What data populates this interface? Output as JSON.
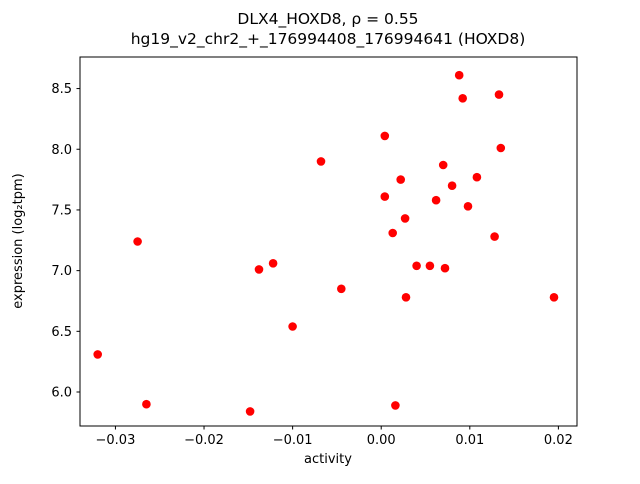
{
  "chart_data": {
    "type": "scatter",
    "title_line1": "DLX4_HOXD8, ρ = 0.55",
    "title_line2": "hg19_v2_chr2_+_176994408_176994641 (HOXD8)",
    "xlabel": "activity",
    "ylabel": "expression (log₂tpm)",
    "marker_color": "#ff0000",
    "axis_color": "#000000",
    "xlim": [
      -0.034,
      0.0221
    ],
    "ylim": [
      5.72,
      8.76
    ],
    "x_ticks": {
      "values": [
        -0.03,
        -0.02,
        -0.01,
        0.0,
        0.01,
        0.02
      ],
      "labels": [
        "−0.03",
        "−0.02",
        "−0.01",
        "0.00",
        "0.01",
        "0.02"
      ]
    },
    "y_ticks": {
      "values": [
        6.0,
        6.5,
        7.0,
        7.5,
        8.0,
        8.5
      ],
      "labels": [
        "6.0",
        "6.5",
        "7.0",
        "7.5",
        "8.0",
        "8.5"
      ]
    },
    "points": [
      [
        -0.032,
        6.31
      ],
      [
        -0.0275,
        7.24
      ],
      [
        -0.0265,
        5.9
      ],
      [
        -0.0148,
        5.84
      ],
      [
        -0.0138,
        7.01
      ],
      [
        -0.0122,
        7.06
      ],
      [
        -0.01,
        6.54
      ],
      [
        -0.0068,
        7.9
      ],
      [
        -0.0045,
        6.85
      ],
      [
        0.0004,
        8.11
      ],
      [
        0.0004,
        7.61
      ],
      [
        0.0013,
        7.31
      ],
      [
        0.0016,
        5.89
      ],
      [
        0.0022,
        7.75
      ],
      [
        0.0027,
        7.43
      ],
      [
        0.0028,
        6.78
      ],
      [
        0.004,
        7.04
      ],
      [
        0.0055,
        7.04
      ],
      [
        0.0062,
        7.58
      ],
      [
        0.007,
        7.87
      ],
      [
        0.0072,
        7.02
      ],
      [
        0.008,
        7.7
      ],
      [
        0.0088,
        8.61
      ],
      [
        0.0092,
        8.42
      ],
      [
        0.0098,
        7.53
      ],
      [
        0.0108,
        7.77
      ],
      [
        0.0128,
        7.28
      ],
      [
        0.0133,
        8.45
      ],
      [
        0.0135,
        8.01
      ],
      [
        0.0195,
        6.78
      ]
    ]
  }
}
